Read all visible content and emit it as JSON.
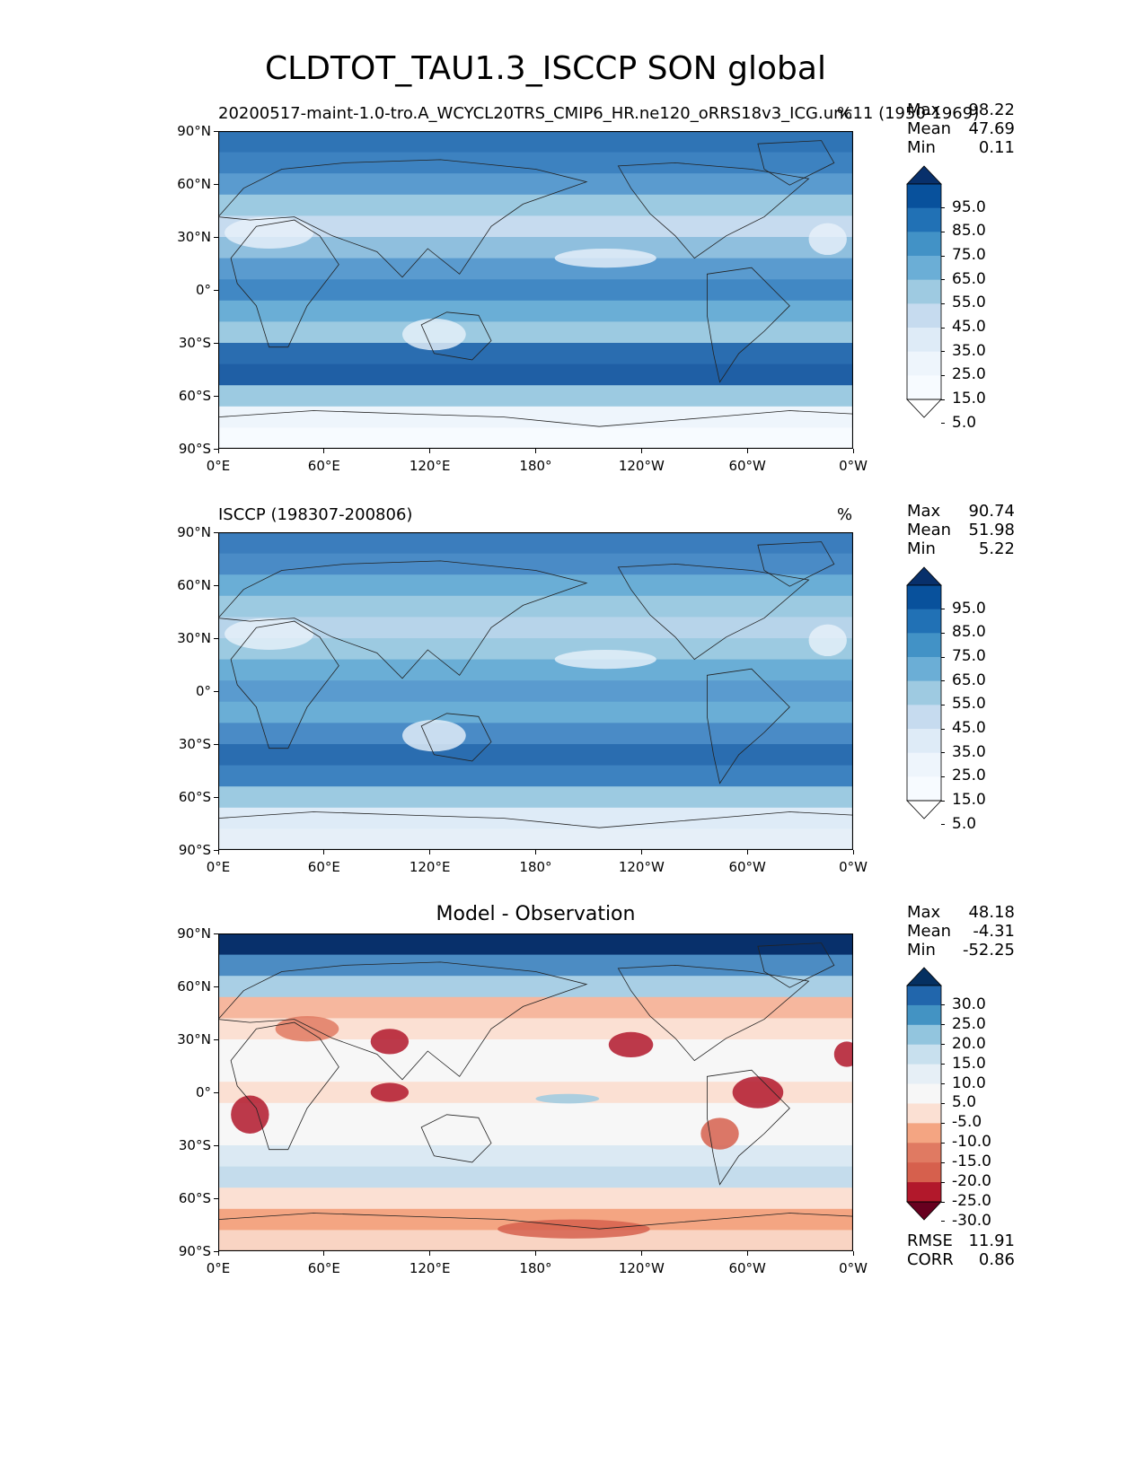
{
  "figure": {
    "title": "CLDTOT_TAU1.3_ISCCP SON global"
  },
  "axis_ticks": {
    "lat": [
      "90°N",
      "60°N",
      "30°N",
      "0°",
      "30°S",
      "60°S",
      "90°S"
    ],
    "lon": [
      "0°E",
      "60°E",
      "120°E",
      "180°",
      "120°W",
      "60°W",
      "0°W"
    ]
  },
  "panels": [
    {
      "id": "model",
      "left_title": "20200517-maint-1.0-tro.A_WCYCL20TRS_CMIP6_HR.ne120_oRRS18v3_ICG.unc11 (1950-1969)",
      "center_title": "",
      "units": "%",
      "stats": [
        {
          "label": "Max",
          "value": "98.22"
        },
        {
          "label": "Mean",
          "value": "47.69"
        },
        {
          "label": "Min",
          "value": "0.11"
        }
      ],
      "colorbar": {
        "labels": [
          "95.0",
          "85.0",
          "75.0",
          "65.0",
          "55.0",
          "45.0",
          "35.0",
          "25.0",
          "15.0",
          "5.0"
        ],
        "colors": [
          "#08306b",
          "#08519c",
          "#2171b5",
          "#4292c6",
          "#6baed6",
          "#9ecae1",
          "#c6dbef",
          "#deebf7",
          "#eef5fc",
          "#f7fbff",
          "#ffffff"
        ]
      },
      "footer_stats": []
    },
    {
      "id": "obs",
      "left_title": "ISCCP (198307-200806)",
      "center_title": "",
      "units": "%",
      "stats": [
        {
          "label": "Max",
          "value": "90.74"
        },
        {
          "label": "Mean",
          "value": "51.98"
        },
        {
          "label": "Min",
          "value": "5.22"
        }
      ],
      "colorbar": {
        "labels": [
          "95.0",
          "85.0",
          "75.0",
          "65.0",
          "55.0",
          "45.0",
          "35.0",
          "25.0",
          "15.0",
          "5.0"
        ],
        "colors": [
          "#08306b",
          "#08519c",
          "#2171b5",
          "#4292c6",
          "#6baed6",
          "#9ecae1",
          "#c6dbef",
          "#deebf7",
          "#eef5fc",
          "#f7fbff",
          "#ffffff"
        ]
      },
      "footer_stats": []
    },
    {
      "id": "diff",
      "left_title": "",
      "center_title": "Model - Observation",
      "units": "",
      "stats": [
        {
          "label": "Max",
          "value": "48.18"
        },
        {
          "label": "Mean",
          "value": "-4.31"
        },
        {
          "label": "Min",
          "value": "-52.25"
        }
      ],
      "colorbar": {
        "labels": [
          "30.0",
          "25.0",
          "20.0",
          "15.0",
          "10.0",
          "5.0",
          "-5.0",
          "-10.0",
          "-15.0",
          "-20.0",
          "-25.0",
          "-30.0"
        ],
        "colors": [
          "#053061",
          "#2166ac",
          "#4393c3",
          "#92c5de",
          "#c8e0ee",
          "#e6eff6",
          "#f7f7f7",
          "#fbe0d3",
          "#f4a582",
          "#e07a62",
          "#d6604d",
          "#b2182b",
          "#67001f"
        ]
      },
      "footer_stats": [
        {
          "label": "RMSE",
          "value": "11.91"
        },
        {
          "label": "CORR",
          "value": "0.86"
        }
      ]
    }
  ]
}
